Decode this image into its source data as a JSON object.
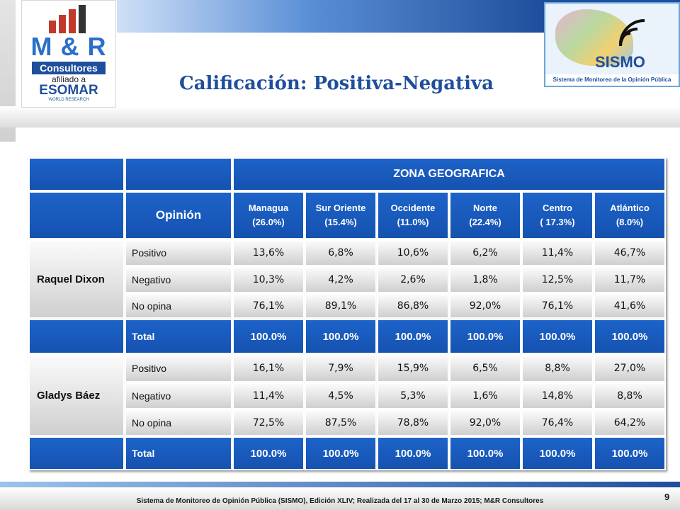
{
  "title": "Calificación: Positiva-Negativa",
  "logo_left": {
    "brand": "M & R",
    "line1": "Consultores",
    "line2": "afiliado a",
    "line3": "ESOMAR",
    "line4": "WORLD RESEARCH"
  },
  "logo_right": {
    "brand": "SISMO",
    "subtitle": "Sistema de Monitoreo de la Opinión Pública"
  },
  "table": {
    "group_header": "ZONA GEOGRAFICA",
    "opinion_header": "Opinión",
    "zones": [
      {
        "name": "Managua",
        "pct": "(26.0%)"
      },
      {
        "name": "Sur Oriente",
        "pct": "(15.4%)"
      },
      {
        "name": "Occidente",
        "pct": "(11.0%)"
      },
      {
        "name": "Norte",
        "pct": "(22.4%)"
      },
      {
        "name": "Centro",
        "pct": "( 17.3%)"
      },
      {
        "name": "Atlántico",
        "pct": "(8.0%)"
      }
    ],
    "blocks": [
      {
        "person": "Raquel Dixon",
        "rows": [
          {
            "label": "Positivo",
            "values": [
              "13,6%",
              "6,8%",
              "10,6%",
              "6,2%",
              "11,4%",
              "46,7%"
            ]
          },
          {
            "label": "Negativo",
            "values": [
              "10,3%",
              "4,2%",
              "2,6%",
              "1,8%",
              "12,5%",
              "11,7%"
            ]
          },
          {
            "label": "No opina",
            "values": [
              "76,1%",
              "89,1%",
              "86,8%",
              "92,0%",
              "76,1%",
              "41,6%"
            ]
          }
        ],
        "total_label": "Total",
        "totals": [
          "100.0%",
          "100.0%",
          "100.0%",
          "100.0%",
          "100.0%",
          "100.0%"
        ]
      },
      {
        "person": "Gladys Báez",
        "rows": [
          {
            "label": "Positivo",
            "values": [
              "16,1%",
              "7,9%",
              "15,9%",
              "6,5%",
              "8,8%",
              "27,0%"
            ]
          },
          {
            "label": "Negativo",
            "values": [
              "11,4%",
              "4,5%",
              "5,3%",
              "1,6%",
              "14,8%",
              "8,8%"
            ]
          },
          {
            "label": "No opina",
            "values": [
              "72,5%",
              "87,5%",
              "78,8%",
              "92,0%",
              "76,4%",
              "64,2%"
            ]
          }
        ],
        "total_label": "Total",
        "totals": [
          "100.0%",
          "100.0%",
          "100.0%",
          "100.0%",
          "100.0%",
          "100.0%"
        ]
      }
    ]
  },
  "footer": "Sistema de Monitoreo de Opinión Pública (SISMO), Edición XLIV; Realizada del 17 al 30 de Marzo 2015; M&R Consultores",
  "page_number": "9",
  "colors": {
    "header_blue": "#1d63c9",
    "title_blue": "#1f4f9c",
    "cell_gray": "#e6e6e6"
  }
}
